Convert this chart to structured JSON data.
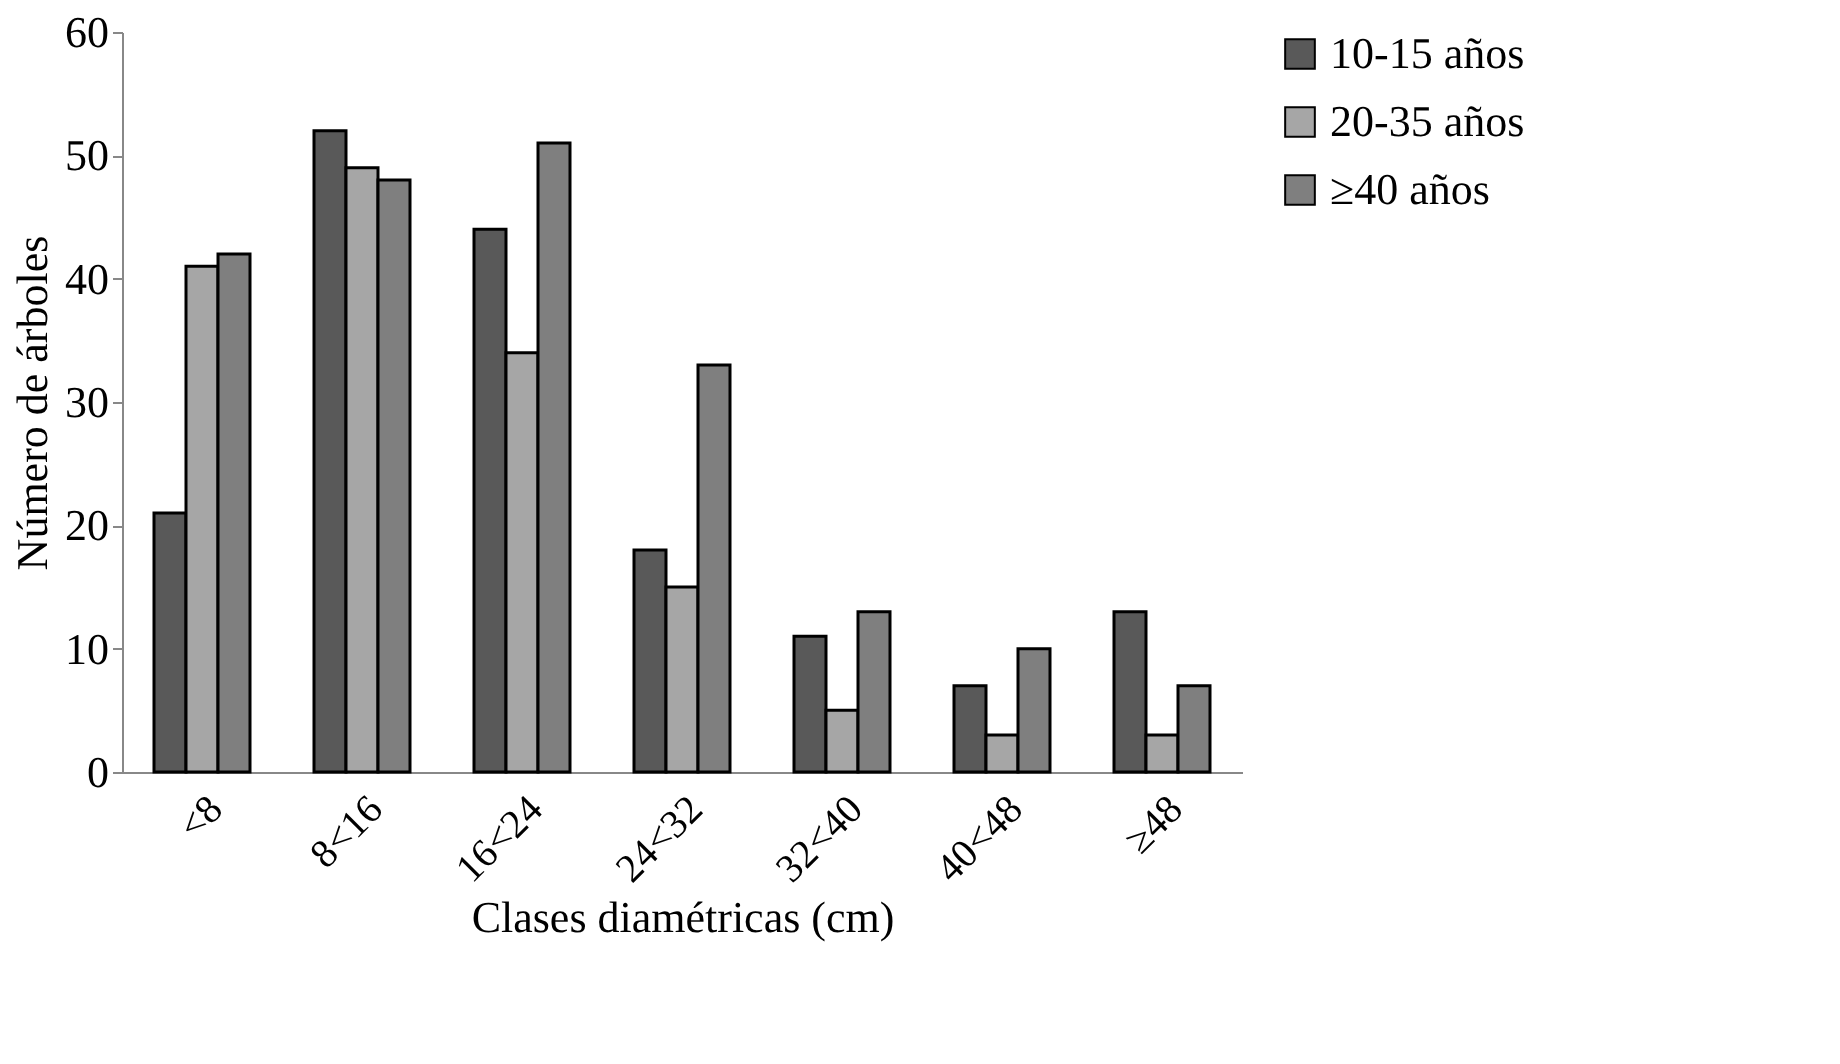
{
  "chart_data": {
    "type": "bar",
    "xlabel": "Clases diamétricas (cm)",
    "ylabel": "Número de árboles",
    "categories": [
      "<8",
      "8<16",
      "16<24",
      "24<32",
      "32<40",
      "40<48",
      "≥48"
    ],
    "series": [
      {
        "name": "10-15 años",
        "color": "#595959",
        "values": [
          21,
          52,
          44,
          18,
          11,
          7,
          13
        ]
      },
      {
        "name": "20-35 años",
        "color": "#a6a6a6",
        "values": [
          41,
          49,
          34,
          15,
          5,
          3,
          3
        ]
      },
      {
        "name": "≥40 años",
        "color": "#7f7f7f",
        "values": [
          42,
          48,
          51,
          33,
          13,
          10,
          7
        ]
      }
    ],
    "ylim": [
      0,
      60
    ],
    "yticks": [
      0,
      10,
      20,
      30,
      40,
      50,
      60
    ],
    "grid": false,
    "legend": "right"
  }
}
